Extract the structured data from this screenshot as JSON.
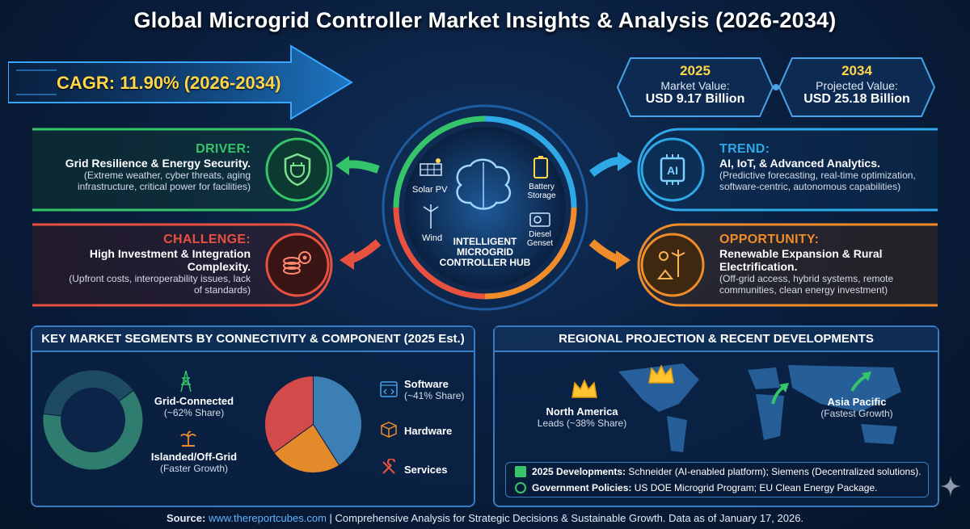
{
  "title": "Global Microgrid Controller Market Insights & Analysis (2026-2034)",
  "cagr": "CAGR: 11.90% (2026-2034)",
  "market_2025": {
    "year": "2025",
    "label": "Market Value:",
    "value": "USD 9.17 Billion"
  },
  "market_2034": {
    "year": "2034",
    "label": "Projected Value:",
    "value": "USD 25.18 Billion"
  },
  "driver": {
    "head": "DRIVER:",
    "title": "Grid Resilience & Energy Security.",
    "sub1": "(Extreme weather, cyber threats, aging",
    "sub2": "infrastructure, critical power for facilities)"
  },
  "challenge": {
    "head": "CHALLENGE:",
    "title1": "High Investment & Integration",
    "title2": "Complexity.",
    "sub1": "(Upfront costs, interoperability issues, lack",
    "sub2": "of standards)"
  },
  "trend": {
    "head": "TREND:",
    "title": "AI, IoT, & Advanced Analytics.",
    "sub1": "(Predictive forecasting, real-time optimization,",
    "sub2": "software-centric, autonomous capabilities)"
  },
  "opportunity": {
    "head": "OPPORTUNITY:",
    "title1": "Renewable Expansion & Rural",
    "title2": "Electrification.",
    "sub1": "(Off-grid access, hybrid systems, remote",
    "sub2": "communities, clean energy investment)"
  },
  "hub": {
    "line1": "INTELLIGENT",
    "line2": "MICROGRID",
    "line3": "CONTROLLER HUB",
    "solar": "Solar PV",
    "battery1": "Battery",
    "battery2": "Storage",
    "wind": "Wind",
    "diesel1": "Diesel",
    "diesel2": "Genset",
    "ai": "AI"
  },
  "segments": {
    "head": "KEY MARKET SEGMENTS BY CONNECTIVITY & COMPONENT (2025 Est.)",
    "grid_label": "Grid-Connected",
    "grid_share": "(~62% Share)",
    "island_label": "Islanded/Off-Grid",
    "island_note": "(Faster Growth)",
    "software_label": "Software",
    "software_share": "(~41% Share)",
    "hardware_label": "Hardware",
    "services_label": "Services"
  },
  "regional": {
    "head": "REGIONAL PROJECTION & RECENT DEVELOPMENTS",
    "na_label": "North America",
    "na_note": "Leads (~38% Share)",
    "ap_label": "Asia Pacific",
    "ap_note": "(Fastest Growth)",
    "dev_bold": "2025 Developments:",
    "dev_text": " Schneider (AI-enabled platform); Siemens (Decentralized solutions).",
    "pol_bold": "Government Policies:",
    "pol_text": " US DOE Microgrid Program; EU Clean Energy Package."
  },
  "footer": {
    "src": "Source:",
    "link": "www.thereportcubes.com",
    "rest": " | Comprehensive Analysis for Strategic Decisions & Sustainable Growth. Data as of January 17, 2026."
  },
  "chart_data": [
    {
      "type": "pie",
      "title": "",
      "categories": [
        "Grid-Connected",
        "Islanded/Off-Grid"
      ],
      "values": [
        62,
        38
      ],
      "donut": true,
      "colors": [
        "#2f7d6e",
        "#1f4a63"
      ]
    },
    {
      "type": "pie",
      "title": "",
      "categories": [
        "Software",
        "Hardware",
        "Services"
      ],
      "values": [
        41,
        24,
        35
      ],
      "colors": [
        "#3b7fb5",
        "#e58a2b",
        "#d34a4a"
      ]
    }
  ],
  "colors": {
    "driver": "#35c46a",
    "challenge": "#e8513f",
    "trend": "#2fa8e8",
    "opportunity": "#f08c2a",
    "accent": "#ffd54a"
  }
}
